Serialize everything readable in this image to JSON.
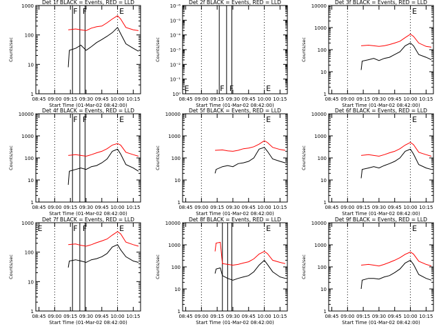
{
  "figure": {
    "background": "#ffffff",
    "colors": {
      "events": "#000000",
      "lld": "#ff0000",
      "axes": "#000000"
    }
  },
  "chart_data": [
    {
      "type": "line",
      "title": "Det 1f BLACK = Events, RED = LLD",
      "xlabel": "Start Time (01-Mar-02 08:42:00)",
      "ylabel": "Counts/sec",
      "xticks": [
        "08:45",
        "09:00",
        "09:15",
        "09:30",
        "09:45",
        "10:00",
        "10:15"
      ],
      "xlim": [
        "08:42",
        "10:22"
      ],
      "yscale": "log",
      "ylim": [
        1,
        1000
      ],
      "yticks": [
        "1",
        "10",
        "100",
        "1000"
      ],
      "dotted_x": [
        "09:00",
        "10:00"
      ],
      "solid_x": [
        "09:17",
        "09:24",
        "09:29"
      ],
      "markers": [
        {
          "x": "09:17",
          "text": "F"
        },
        {
          "x": "09:26",
          "text": "F"
        },
        {
          "x": "10:01",
          "text": "E"
        }
      ],
      "series": [
        {
          "name": "Events",
          "color": "#000000",
          "x": [
            "09:13",
            "09:14",
            "09:20",
            "09:25",
            "09:30",
            "09:35",
            "09:40",
            "09:45",
            "09:50",
            "09:55",
            "10:00",
            "10:03",
            "10:08",
            "10:15",
            "10:20"
          ],
          "y": [
            8,
            30,
            35,
            45,
            30,
            40,
            55,
            70,
            90,
            120,
            180,
            110,
            50,
            35,
            28
          ]
        },
        {
          "name": "LLD",
          "color": "#ff0000",
          "x": [
            "09:13",
            "09:20",
            "09:25",
            "09:30",
            "09:35",
            "09:40",
            "09:45",
            "09:50",
            "09:55",
            "10:00",
            "10:03",
            "10:08",
            "10:15",
            "10:20"
          ],
          "y": [
            150,
            160,
            150,
            140,
            170,
            190,
            200,
            260,
            350,
            450,
            350,
            180,
            150,
            140
          ]
        }
      ]
    },
    {
      "type": "line",
      "title": "Det 2f BLACK = Events, RED = LLD",
      "xlabel": "Start Time (01-Mar-02 08:42:00)",
      "ylabel": "Counts/sec",
      "xticks": [
        "08:45",
        "09:00",
        "09:15",
        "09:30",
        "09:45",
        "10:00",
        "10:15"
      ],
      "xlim": [
        "08:42",
        "10:22"
      ],
      "yscale": "log",
      "ylim": [
        1,
        1e-06
      ],
      "yticks": [
        "10⁰",
        "10⁻¹",
        "10⁻²",
        "10⁻³",
        "10⁻⁴",
        "10⁻⁵",
        "10⁻⁶"
      ],
      "dotted_x": [
        "09:00",
        "10:00"
      ],
      "solid_x": [
        "09:17",
        "09:24",
        "09:29"
      ],
      "markers": [
        {
          "x": "08:43",
          "text": "E"
        },
        {
          "x": "09:17",
          "text": "F"
        },
        {
          "x": "09:26",
          "text": "F"
        },
        {
          "x": "10:01",
          "text": "E"
        }
      ],
      "series": []
    },
    {
      "type": "line",
      "title": "Det 3f BLACK = Events, RED = LLD",
      "xlabel": "Start Time (01-Mar-02 08:42:00)",
      "ylabel": "Counts/sec",
      "xticks": [
        "08:45",
        "09:00",
        "09:15",
        "09:30",
        "09:45",
        "10:00",
        "10:15"
      ],
      "xlim": [
        "08:42",
        "10:22"
      ],
      "yscale": "log",
      "ylim": [
        1,
        10000
      ],
      "yticks": [
        "1",
        "10",
        "100",
        "1000",
        "10000"
      ],
      "dotted_x": [
        "09:00",
        "10:00"
      ],
      "solid_x": [],
      "markers": [
        {
          "x": "10:01",
          "text": "E"
        }
      ],
      "series": [
        {
          "name": "Events",
          "color": "#000000",
          "x": [
            "09:13",
            "09:14",
            "09:20",
            "09:25",
            "09:30",
            "09:35",
            "09:40",
            "09:45",
            "09:50",
            "09:55",
            "10:00",
            "10:03",
            "10:08",
            "10:15",
            "10:20"
          ],
          "y": [
            12,
            30,
            35,
            40,
            32,
            40,
            45,
            60,
            80,
            150,
            200,
            150,
            60,
            45,
            35
          ]
        },
        {
          "name": "LLD",
          "color": "#ff0000",
          "x": [
            "09:13",
            "09:20",
            "09:25",
            "09:30",
            "09:35",
            "09:40",
            "09:45",
            "09:50",
            "09:55",
            "10:00",
            "10:03",
            "10:08",
            "10:15",
            "10:20"
          ],
          "y": [
            150,
            160,
            150,
            140,
            150,
            170,
            200,
            240,
            350,
            500,
            400,
            200,
            140,
            130
          ]
        }
      ]
    },
    {
      "type": "line",
      "title": "Det 4f BLACK = Events, RED = LLD",
      "xlabel": "Start Time (01-Mar-02 08:42:00)",
      "ylabel": "Counts/sec",
      "xticks": [
        "08:45",
        "09:00",
        "09:15",
        "09:30",
        "09:45",
        "10:00",
        "10:15"
      ],
      "xlim": [
        "08:42",
        "10:22"
      ],
      "yscale": "log",
      "ylim": [
        1,
        10000
      ],
      "yticks": [
        "1",
        "10",
        "100",
        "1000",
        "10000"
      ],
      "dotted_x": [
        "09:00",
        "10:00"
      ],
      "solid_x": [
        "09:17",
        "09:24",
        "09:29"
      ],
      "markers": [
        {
          "x": "09:17",
          "text": "F"
        },
        {
          "x": "09:26",
          "text": "F"
        },
        {
          "x": "10:01",
          "text": "E"
        }
      ],
      "series": [
        {
          "name": "Events",
          "color": "#000000",
          "x": [
            "09:13",
            "09:14",
            "09:20",
            "09:25",
            "09:30",
            "09:35",
            "09:40",
            "09:45",
            "09:50",
            "09:55",
            "10:00",
            "10:03",
            "10:08",
            "10:15",
            "10:20"
          ],
          "y": [
            6,
            25,
            30,
            35,
            30,
            40,
            45,
            60,
            90,
            200,
            250,
            150,
            50,
            35,
            25
          ]
        },
        {
          "name": "LLD",
          "color": "#ff0000",
          "x": [
            "09:13",
            "09:20",
            "09:25",
            "09:30",
            "09:35",
            "09:40",
            "09:45",
            "09:50",
            "09:55",
            "10:00",
            "10:03",
            "10:08",
            "10:15",
            "10:20"
          ],
          "y": [
            130,
            140,
            130,
            120,
            140,
            170,
            200,
            260,
            380,
            450,
            380,
            180,
            140,
            120
          ]
        }
      ]
    },
    {
      "type": "line",
      "title": "Det 5f BLACK = Events, RED = LLD",
      "xlabel": "Start Time (01-Mar-02 08:42:00)",
      "ylabel": "Counts/sec",
      "xticks": [
        "08:45",
        "09:00",
        "09:15",
        "09:30",
        "09:45",
        "10:00",
        "10:15"
      ],
      "xlim": [
        "08:42",
        "10:22"
      ],
      "yscale": "log",
      "ylim": [
        1,
        10000
      ],
      "yticks": [
        "1",
        "10",
        "100",
        "1000",
        "10000"
      ],
      "dotted_x": [
        "09:00",
        "10:00"
      ],
      "solid_x": [],
      "markers": [
        {
          "x": "10:01",
          "text": "E"
        }
      ],
      "series": [
        {
          "name": "Events",
          "color": "#000000",
          "x": [
            "09:13",
            "09:14",
            "09:20",
            "09:25",
            "09:30",
            "09:35",
            "09:40",
            "09:45",
            "09:50",
            "09:55",
            "10:00",
            "10:03",
            "10:08",
            "10:15",
            "10:20"
          ],
          "y": [
            20,
            30,
            40,
            45,
            40,
            55,
            60,
            70,
            100,
            250,
            300,
            200,
            90,
            70,
            60
          ]
        },
        {
          "name": "LLD",
          "color": "#ff0000",
          "x": [
            "09:13",
            "09:20",
            "09:25",
            "09:30",
            "09:35",
            "09:40",
            "09:45",
            "09:50",
            "09:55",
            "10:00",
            "10:03",
            "10:08",
            "10:15",
            "10:20"
          ],
          "y": [
            220,
            230,
            210,
            200,
            220,
            260,
            280,
            320,
            420,
            600,
            500,
            300,
            240,
            220
          ]
        }
      ]
    },
    {
      "type": "line",
      "title": "Det 6f BLACK = Events, RED = LLD",
      "xlabel": "Start Time (01-Mar-02 08:42:00)",
      "ylabel": "Counts/sec",
      "xticks": [
        "08:45",
        "09:00",
        "09:15",
        "09:30",
        "09:45",
        "10:00",
        "10:15"
      ],
      "xlim": [
        "08:42",
        "10:22"
      ],
      "yscale": "log",
      "ylim": [
        1,
        10000
      ],
      "yticks": [
        "1",
        "10",
        "100",
        "1000",
        "10000"
      ],
      "dotted_x": [
        "09:00",
        "10:00"
      ],
      "solid_x": [],
      "markers": [
        {
          "x": "10:01",
          "text": "E"
        }
      ],
      "series": [
        {
          "name": "Events",
          "color": "#000000",
          "x": [
            "09:13",
            "09:14",
            "09:20",
            "09:25",
            "09:30",
            "09:35",
            "09:40",
            "09:45",
            "09:50",
            "09:55",
            "10:00",
            "10:03",
            "10:08",
            "10:15",
            "10:20"
          ],
          "y": [
            12,
            30,
            35,
            40,
            35,
            45,
            55,
            70,
            100,
            200,
            250,
            150,
            50,
            35,
            30
          ]
        },
        {
          "name": "LLD",
          "color": "#ff0000",
          "x": [
            "09:13",
            "09:20",
            "09:25",
            "09:30",
            "09:35",
            "09:40",
            "09:45",
            "09:50",
            "09:55",
            "10:00",
            "10:03",
            "10:08",
            "10:15",
            "10:20"
          ],
          "y": [
            130,
            140,
            130,
            120,
            140,
            170,
            200,
            260,
            380,
            500,
            400,
            180,
            140,
            120
          ]
        }
      ]
    },
    {
      "type": "line",
      "title": "Det 7f BLACK = Events, RED = LLD",
      "xlabel": "Start Time (01-Mar-02 08:42:00)",
      "ylabel": "Counts/sec",
      "xticks": [
        "08:45",
        "09:00",
        "09:15",
        "09:30",
        "09:45",
        "10:00",
        "10:15"
      ],
      "xlim": [
        "08:42",
        "10:22"
      ],
      "yscale": "log",
      "ylim": [
        1,
        1000
      ],
      "yticks": [
        "1",
        "10",
        "100",
        "1000"
      ],
      "dotted_x": [
        "09:00",
        "10:00"
      ],
      "solid_x": [
        "09:17",
        "09:24",
        "09:29"
      ],
      "markers": [
        {
          "x": "08:43",
          "text": "E"
        },
        {
          "x": "09:17",
          "text": "F"
        },
        {
          "x": "09:26",
          "text": "F"
        },
        {
          "x": "10:01",
          "text": "E"
        }
      ],
      "series": [
        {
          "name": "Events",
          "color": "#000000",
          "x": [
            "09:13",
            "09:14",
            "09:20",
            "09:25",
            "09:30",
            "09:35",
            "09:40",
            "09:45",
            "09:50",
            "09:55",
            "10:00",
            "10:03",
            "10:08",
            "10:15",
            "10:20"
          ],
          "y": [
            30,
            50,
            55,
            50,
            45,
            55,
            60,
            70,
            90,
            150,
            180,
            120,
            70,
            50,
            45
          ]
        },
        {
          "name": "LLD",
          "color": "#ff0000",
          "x": [
            "09:13",
            "09:20",
            "09:25",
            "09:30",
            "09:35",
            "09:40",
            "09:45",
            "09:50",
            "09:55",
            "10:00",
            "10:03",
            "10:08",
            "10:15",
            "10:20"
          ],
          "y": [
            180,
            190,
            170,
            160,
            180,
            210,
            240,
            280,
            380,
            500,
            420,
            220,
            180,
            160
          ]
        }
      ]
    },
    {
      "type": "line",
      "title": "Det 8f BLACK = Events, RED = LLD",
      "xlabel": "Start Time (01-Mar-02 08:42:00)",
      "ylabel": "Counts/sec",
      "xticks": [
        "08:45",
        "09:00",
        "09:15",
        "09:30",
        "09:45",
        "10:00",
        "10:15"
      ],
      "xlim": [
        "08:42",
        "10:22"
      ],
      "yscale": "log",
      "ylim": [
        1,
        10000
      ],
      "yticks": [
        "1",
        "10",
        "100",
        "1000",
        "10000"
      ],
      "dotted_x": [
        "09:00",
        "10:00"
      ],
      "solid_x": [
        "09:20",
        "09:25",
        "09:29"
      ],
      "markers": [
        {
          "x": "10:01",
          "text": "E"
        }
      ],
      "series": [
        {
          "name": "Events",
          "color": "#000000",
          "x": [
            "09:13",
            "09:14",
            "09:18",
            "09:20",
            "09:25",
            "09:30",
            "09:35",
            "09:40",
            "09:45",
            "09:50",
            "09:55",
            "10:00",
            "10:03",
            "10:08",
            "10:15",
            "10:20"
          ],
          "y": [
            50,
            80,
            90,
            40,
            30,
            25,
            30,
            35,
            40,
            60,
            120,
            200,
            130,
            60,
            35,
            30
          ]
        },
        {
          "name": "LLD",
          "color": "#ff0000",
          "x": [
            "09:13",
            "09:14",
            "09:18",
            "09:20",
            "09:25",
            "09:30",
            "09:35",
            "09:40",
            "09:45",
            "09:50",
            "09:55",
            "10:00",
            "10:03",
            "10:08",
            "10:15",
            "10:20"
          ],
          "y": [
            500,
            1200,
            1300,
            140,
            130,
            120,
            130,
            150,
            170,
            230,
            380,
            500,
            400,
            200,
            160,
            140
          ]
        }
      ]
    },
    {
      "type": "line",
      "title": "Det 9f BLACK = Events, RED = LLD",
      "xlabel": "Start Time (01-Mar-02 08:42:00)",
      "ylabel": "Counts/sec",
      "xticks": [
        "08:45",
        "09:00",
        "09:15",
        "09:30",
        "09:45",
        "10:00",
        "10:15"
      ],
      "xlim": [
        "08:42",
        "10:22"
      ],
      "yscale": "log",
      "ylim": [
        1,
        10000
      ],
      "yticks": [
        "1",
        "10",
        "100",
        "1000",
        "10000"
      ],
      "dotted_x": [
        "09:00",
        "10:00"
      ],
      "solid_x": [],
      "markers": [
        {
          "x": "10:01",
          "text": "E"
        }
      ],
      "series": [
        {
          "name": "Events",
          "color": "#000000",
          "x": [
            "09:13",
            "09:14",
            "09:20",
            "09:25",
            "09:30",
            "09:35",
            "09:40",
            "09:45",
            "09:50",
            "09:55",
            "10:00",
            "10:03",
            "10:08",
            "10:15",
            "10:20"
          ],
          "y": [
            10,
            25,
            30,
            30,
            28,
            35,
            40,
            55,
            80,
            150,
            200,
            130,
            45,
            30,
            25
          ]
        },
        {
          "name": "LLD",
          "color": "#ff0000",
          "x": [
            "09:13",
            "09:20",
            "09:25",
            "09:30",
            "09:35",
            "09:40",
            "09:45",
            "09:50",
            "09:55",
            "10:00",
            "10:03",
            "10:08",
            "10:15",
            "10:20"
          ],
          "y": [
            120,
            130,
            120,
            110,
            130,
            160,
            200,
            260,
            370,
            470,
            380,
            180,
            130,
            110
          ]
        }
      ]
    }
  ]
}
